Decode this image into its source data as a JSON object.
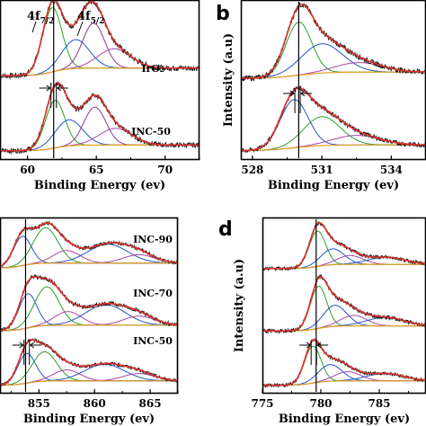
{
  "chart_data": [
    {
      "id": "a",
      "type": "line",
      "panel_letter": "",
      "xlabel": "Binding Energy (ev)",
      "ylabel": "",
      "xlim": [
        58,
        72.5
      ],
      "xticks": [
        60,
        65,
        70
      ],
      "xtick_labels": [
        "60",
        "65",
        "70"
      ],
      "annotations": [
        "4f7/2",
        "4f5/2"
      ],
      "samples": [
        {
          "name": "IrO₂",
          "peaks": [
            {
              "center": 61.8,
              "height": 1.0,
              "width": 0.7,
              "color": "#2aa02a"
            },
            {
              "center": 63.5,
              "height": 0.45,
              "width": 1.0,
              "color": "#2255cc"
            },
            {
              "center": 64.8,
              "height": 0.7,
              "width": 0.8,
              "color": "#8a3a8a"
            },
            {
              "center": 66.3,
              "height": 0.3,
              "width": 1.2,
              "color": "#aa44aa"
            }
          ]
        },
        {
          "name": "INC-50",
          "peaks": [
            {
              "center": 62.0,
              "height": 1.0,
              "width": 0.7,
              "color": "#2aa02a"
            },
            {
              "center": 63.0,
              "height": 0.55,
              "width": 1.0,
              "color": "#2255cc"
            },
            {
              "center": 64.9,
              "height": 0.8,
              "width": 0.8,
              "color": "#8a3a8a"
            },
            {
              "center": 66.4,
              "height": 0.35,
              "width": 1.2,
              "color": "#aa44aa"
            }
          ]
        }
      ],
      "reference_x": 61.9,
      "shift_marker_x": 61.9
    },
    {
      "id": "b",
      "type": "line",
      "panel_letter": "b",
      "xlabel": "Binding Energy (ev)",
      "ylabel": "Intensity (a.u)",
      "xlim": [
        527.5,
        535.5
      ],
      "xticks": [
        528,
        531,
        534
      ],
      "xtick_labels": [
        "528",
        "531",
        "534"
      ],
      "samples": [
        {
          "name": "",
          "peaks": [
            {
              "center": 530.0,
              "height": 1.0,
              "width": 0.55,
              "color": "#2aa02a"
            },
            {
              "center": 531.0,
              "height": 0.55,
              "width": 0.9,
              "color": "#2255cc"
            },
            {
              "center": 532.6,
              "height": 0.18,
              "width": 1.0,
              "color": "#aa44aa"
            }
          ]
        },
        {
          "name": "",
          "peaks": [
            {
              "center": 529.8,
              "height": 1.0,
              "width": 0.6,
              "color": "#2255cc"
            },
            {
              "center": 531.0,
              "height": 0.6,
              "width": 0.8,
              "color": "#2aa02a"
            },
            {
              "center": 532.5,
              "height": 0.2,
              "width": 1.0,
              "color": "#aa44aa"
            }
          ]
        }
      ],
      "reference_x": 530.0,
      "shift_marker_x": 529.95
    },
    {
      "id": "c",
      "type": "line",
      "panel_letter": "",
      "xlabel": "Binding Energy (ev)",
      "ylabel": "",
      "xlim": [
        851.5,
        867.5
      ],
      "xticks": [
        855,
        860,
        865
      ],
      "xtick_labels": [
        "855",
        "860",
        "865"
      ],
      "samples": [
        {
          "name": "INC-90",
          "peaks": [
            {
              "center": 853.5,
              "height": 0.7,
              "width": 0.8,
              "color": "#2255cc"
            },
            {
              "center": 855.6,
              "height": 0.85,
              "width": 1.1,
              "color": "#2aa02a"
            },
            {
              "center": 857.5,
              "height": 0.3,
              "width": 1.2,
              "color": "#aa44aa"
            },
            {
              "center": 861.2,
              "height": 0.45,
              "width": 1.8,
              "color": "#2255cc"
            },
            {
              "center": 864.0,
              "height": 0.2,
              "width": 1.4,
              "color": "#aa44aa"
            }
          ]
        },
        {
          "name": "INC-70",
          "peaks": [
            {
              "center": 854.0,
              "height": 0.75,
              "width": 0.8,
              "color": "#2255cc"
            },
            {
              "center": 855.7,
              "height": 0.85,
              "width": 1.1,
              "color": "#2aa02a"
            },
            {
              "center": 857.6,
              "height": 0.3,
              "width": 1.2,
              "color": "#aa44aa"
            },
            {
              "center": 861.0,
              "height": 0.45,
              "width": 1.8,
              "color": "#2255cc"
            },
            {
              "center": 864.0,
              "height": 0.2,
              "width": 1.4,
              "color": "#aa44aa"
            }
          ]
        },
        {
          "name": "INC-50",
          "peaks": [
            {
              "center": 853.9,
              "height": 0.8,
              "width": 0.8,
              "color": "#2255cc"
            },
            {
              "center": 855.5,
              "height": 0.8,
              "width": 1.1,
              "color": "#2aa02a"
            },
            {
              "center": 857.5,
              "height": 0.3,
              "width": 1.2,
              "color": "#aa44aa"
            },
            {
              "center": 860.9,
              "height": 0.45,
              "width": 1.8,
              "color": "#2255cc"
            },
            {
              "center": 864.0,
              "height": 0.2,
              "width": 1.4,
              "color": "#aa44aa"
            }
          ]
        }
      ],
      "reference_x": 853.8,
      "shift_marker_x": 853.9
    },
    {
      "id": "d",
      "type": "line",
      "panel_letter": "d",
      "xlabel": "Binding Energy (ev)",
      "ylabel": "Intensity (a.u)",
      "xlim": [
        775,
        789
      ],
      "xticks": [
        775,
        780,
        785
      ],
      "xtick_labels": [
        "775",
        "780",
        "785"
      ],
      "samples": [
        {
          "name": "",
          "peaks": [
            {
              "center": 779.7,
              "height": 1.0,
              "width": 0.7,
              "color": "#2aa02a"
            },
            {
              "center": 781.0,
              "height": 0.45,
              "width": 1.0,
              "color": "#2255cc"
            },
            {
              "center": 782.5,
              "height": 0.25,
              "width": 1.1,
              "color": "#aa44aa"
            },
            {
              "center": 785.6,
              "height": 0.2,
              "width": 1.6,
              "color": "#2255cc"
            }
          ]
        },
        {
          "name": "",
          "peaks": [
            {
              "center": 779.8,
              "height": 1.0,
              "width": 0.7,
              "color": "#2aa02a"
            },
            {
              "center": 781.2,
              "height": 0.5,
              "width": 1.0,
              "color": "#2255cc"
            },
            {
              "center": 782.8,
              "height": 0.25,
              "width": 1.1,
              "color": "#aa44aa"
            },
            {
              "center": 785.5,
              "height": 0.2,
              "width": 1.6,
              "color": "#2255cc"
            }
          ]
        },
        {
          "name": "",
          "peaks": [
            {
              "center": 779.3,
              "height": 1.0,
              "width": 0.7,
              "color": "#2aa02a"
            },
            {
              "center": 780.8,
              "height": 0.45,
              "width": 1.0,
              "color": "#2255cc"
            },
            {
              "center": 782.3,
              "height": 0.25,
              "width": 1.1,
              "color": "#aa44aa"
            },
            {
              "center": 785.5,
              "height": 0.2,
              "width": 1.6,
              "color": "#2255cc"
            }
          ]
        }
      ],
      "reference_x": 779.6,
      "shift_marker_x": 779.4
    }
  ],
  "colors": {
    "raw": "#1a1a1a",
    "envelope": "#e0302a",
    "background": "#e6a020"
  }
}
